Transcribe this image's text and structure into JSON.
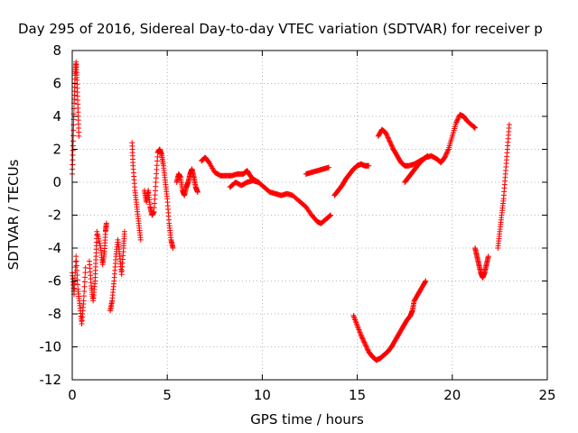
{
  "chart_data": {
    "type": "scatter",
    "title": "Day 295 of 2016, Sidereal Day-to-day VTEC variation (SDTVAR) for receiver p",
    "xlabel": "GPS time / hours",
    "ylabel": "SDTVAR / TECUs",
    "xlim": [
      0,
      25
    ],
    "ylim": [
      -12,
      8
    ],
    "xticks": [
      "0",
      "5",
      "10",
      "15",
      "20",
      "25"
    ],
    "yticks": [
      "-12",
      "-10",
      "-8",
      "-6",
      "-4",
      "-2",
      "0",
      "2",
      "4",
      "6",
      "8"
    ],
    "grid": true,
    "marker": "+",
    "color": "#ff0000",
    "segments": [
      [
        [
          0.0,
          0.5
        ],
        [
          0.05,
          2.5
        ],
        [
          0.1,
          4.8
        ],
        [
          0.15,
          6.5
        ],
        [
          0.2,
          7.3
        ],
        [
          0.25,
          6.2
        ],
        [
          0.3,
          4.5
        ],
        [
          0.35,
          2.8
        ]
      ],
      [
        [
          0.0,
          -5.5
        ],
        [
          0.1,
          -6.8
        ],
        [
          0.2,
          -4.5
        ],
        [
          0.3,
          -6.5
        ],
        [
          0.4,
          -7.5
        ],
        [
          0.5,
          -8.6
        ],
        [
          0.6,
          -7.2
        ],
        [
          0.7,
          -5.2
        ]
      ],
      [
        [
          0.9,
          -4.8
        ],
        [
          1.0,
          -6.3
        ],
        [
          1.1,
          -7.2
        ],
        [
          1.2,
          -6.0
        ],
        [
          1.25,
          -4.5
        ],
        [
          1.3,
          -3.0
        ],
        [
          1.5,
          -4.0
        ],
        [
          1.6,
          -5.0
        ],
        [
          1.7,
          -4.2
        ],
        [
          1.75,
          -3.0
        ],
        [
          1.8,
          -2.5
        ]
      ],
      [
        [
          2.0,
          -7.8
        ],
        [
          2.1,
          -7.2
        ],
        [
          2.2,
          -6.0
        ],
        [
          2.3,
          -4.5
        ],
        [
          2.4,
          -3.5
        ],
        [
          2.5,
          -4.5
        ],
        [
          2.6,
          -5.6
        ],
        [
          2.7,
          -4.0
        ],
        [
          2.75,
          -3.0
        ]
      ],
      [
        [
          3.15,
          2.4
        ],
        [
          3.2,
          1.0
        ],
        [
          3.3,
          -0.5
        ],
        [
          3.4,
          -1.5
        ],
        [
          3.5,
          -2.5
        ],
        [
          3.6,
          -3.5
        ]
      ],
      [
        [
          3.8,
          -0.5
        ],
        [
          3.9,
          -1.2
        ],
        [
          4.0,
          -0.5
        ],
        [
          4.1,
          -1.5
        ],
        [
          4.2,
          -2.0
        ],
        [
          4.3,
          -1.8
        ],
        [
          4.4,
          0.0
        ],
        [
          4.5,
          1.8
        ],
        [
          4.6,
          2.0
        ],
        [
          4.7,
          1.7
        ],
        [
          4.8,
          1.0
        ],
        [
          4.9,
          0.0
        ],
        [
          5.0,
          -1.0
        ],
        [
          5.1,
          -2.5
        ],
        [
          5.2,
          -3.5
        ],
        [
          5.3,
          -4.0
        ]
      ],
      [
        [
          5.5,
          0.0
        ],
        [
          5.6,
          0.5
        ],
        [
          5.7,
          0.3
        ],
        [
          5.8,
          -0.5
        ],
        [
          5.9,
          -0.8
        ],
        [
          6.0,
          -0.3
        ],
        [
          6.1,
          0.0
        ],
        [
          6.2,
          0.5
        ],
        [
          6.3,
          0.8
        ],
        [
          6.4,
          0.3
        ],
        [
          6.5,
          -0.3
        ],
        [
          6.6,
          -0.6
        ]
      ],
      [
        [
          6.8,
          1.3
        ],
        [
          7.0,
          1.5
        ],
        [
          7.2,
          1.2
        ],
        [
          7.5,
          0.6
        ],
        [
          7.8,
          0.4
        ],
        [
          8.1,
          0.4
        ],
        [
          8.4,
          0.4
        ],
        [
          8.7,
          0.5
        ],
        [
          9.0,
          0.5
        ],
        [
          9.2,
          0.7
        ],
        [
          9.3,
          0.5
        ],
        [
          9.5,
          0.2
        ],
        [
          9.8,
          0.0
        ],
        [
          10.1,
          -0.3
        ],
        [
          10.4,
          -0.6
        ],
        [
          10.7,
          -0.7
        ],
        [
          11.0,
          -0.8
        ],
        [
          11.3,
          -0.7
        ],
        [
          11.6,
          -0.8
        ],
        [
          12.0,
          -1.2
        ],
        [
          12.3,
          -1.5
        ],
        [
          12.6,
          -2.0
        ],
        [
          12.9,
          -2.4
        ],
        [
          13.1,
          -2.5
        ],
        [
          13.4,
          -2.2
        ],
        [
          13.6,
          -2.0
        ]
      ],
      [
        [
          8.3,
          -0.3
        ],
        [
          8.6,
          0.0
        ],
        [
          8.9,
          -0.2
        ],
        [
          9.2,
          0.0
        ],
        [
          9.5,
          0.1
        ],
        [
          9.8,
          0.0
        ]
      ],
      [
        [
          12.3,
          0.5
        ],
        [
          12.6,
          0.6
        ],
        [
          12.9,
          0.7
        ],
        [
          13.2,
          0.8
        ],
        [
          13.5,
          0.9
        ]
      ],
      [
        [
          13.8,
          -0.8
        ],
        [
          14.0,
          -0.5
        ],
        [
          14.2,
          -0.2
        ],
        [
          14.4,
          0.2
        ],
        [
          14.6,
          0.5
        ],
        [
          14.8,
          0.8
        ],
        [
          15.0,
          1.0
        ],
        [
          15.2,
          1.1
        ],
        [
          15.4,
          1.0
        ],
        [
          15.6,
          1.0
        ]
      ],
      [
        [
          16.1,
          2.8
        ],
        [
          16.3,
          3.2
        ],
        [
          16.5,
          3.0
        ],
        [
          16.7,
          2.5
        ],
        [
          16.9,
          2.0
        ],
        [
          17.1,
          1.6
        ],
        [
          17.3,
          1.2
        ],
        [
          17.5,
          1.0
        ],
        [
          17.7,
          1.0
        ],
        [
          18.0,
          1.1
        ],
        [
          18.3,
          1.3
        ],
        [
          18.6,
          1.5
        ],
        [
          18.9,
          1.6
        ],
        [
          19.2,
          1.4
        ],
        [
          19.4,
          1.2
        ],
        [
          19.6,
          1.5
        ],
        [
          19.8,
          2.0
        ],
        [
          20.0,
          2.8
        ],
        [
          20.2,
          3.6
        ],
        [
          20.4,
          4.1
        ],
        [
          20.6,
          4.0
        ],
        [
          20.8,
          3.7
        ],
        [
          21.1,
          3.4
        ],
        [
          21.2,
          3.3
        ]
      ],
      [
        [
          17.5,
          0.0
        ],
        [
          17.7,
          0.3
        ],
        [
          17.9,
          0.6
        ],
        [
          18.1,
          0.9
        ],
        [
          18.3,
          1.2
        ],
        [
          18.5,
          1.4
        ],
        [
          18.7,
          1.6
        ]
      ],
      [
        [
          14.8,
          -8.1
        ],
        [
          15.0,
          -8.7
        ],
        [
          15.2,
          -9.3
        ],
        [
          15.4,
          -9.8
        ],
        [
          15.6,
          -10.3
        ],
        [
          15.8,
          -10.6
        ],
        [
          16.0,
          -10.8
        ],
        [
          16.2,
          -10.7
        ],
        [
          16.4,
          -10.5
        ],
        [
          16.6,
          -10.3
        ],
        [
          16.8,
          -10.0
        ],
        [
          17.0,
          -9.6
        ],
        [
          17.2,
          -9.2
        ],
        [
          17.4,
          -8.8
        ],
        [
          17.6,
          -8.4
        ],
        [
          17.8,
          -8.1
        ],
        [
          17.9,
          -7.8
        ],
        [
          18.0,
          -7.2
        ],
        [
          18.2,
          -6.8
        ],
        [
          18.4,
          -6.4
        ],
        [
          18.6,
          -6.0
        ]
      ],
      [
        [
          21.2,
          -4.0
        ],
        [
          21.3,
          -4.5
        ],
        [
          21.4,
          -5.0
        ],
        [
          21.5,
          -5.5
        ],
        [
          21.6,
          -5.8
        ],
        [
          21.7,
          -5.5
        ],
        [
          21.8,
          -5.0
        ],
        [
          21.9,
          -4.5
        ]
      ],
      [
        [
          22.4,
          -4.0
        ],
        [
          22.5,
          -3.0
        ],
        [
          22.6,
          -2.0
        ],
        [
          22.7,
          -1.0
        ],
        [
          22.8,
          0.5
        ],
        [
          22.9,
          2.0
        ],
        [
          23.0,
          3.5
        ]
      ]
    ]
  }
}
